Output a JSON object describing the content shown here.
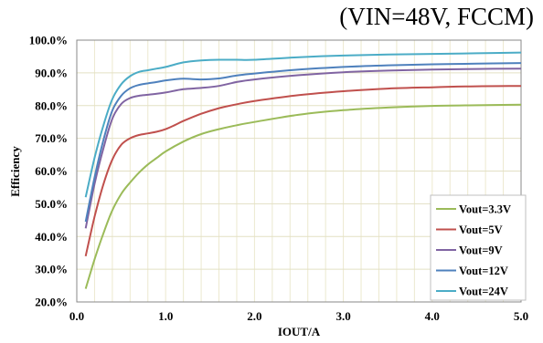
{
  "chart_data": {
    "type": "line",
    "title": "(VIN=48V, FCCM)",
    "xlabel": "IOUT/A",
    "ylabel": "Efficiency",
    "xlim": [
      0,
      5
    ],
    "ylim": [
      20,
      100
    ],
    "x_ticks": [
      "0.0",
      "1.0",
      "2.0",
      "3.0",
      "4.0",
      "5.0"
    ],
    "y_ticks": [
      "20.0%",
      "30.0%",
      "40.0%",
      "50.0%",
      "60.0%",
      "70.0%",
      "80.0%",
      "90.0%",
      "100.0%"
    ],
    "grid": true,
    "legend_position": "bottom-right",
    "series": [
      {
        "name": "Vout=3.3V",
        "color": "#9bbb59",
        "points": [
          [
            0.1,
            24
          ],
          [
            0.2,
            33
          ],
          [
            0.3,
            41
          ],
          [
            0.4,
            48
          ],
          [
            0.5,
            53
          ],
          [
            0.6,
            56.5
          ],
          [
            0.7,
            59.5
          ],
          [
            0.8,
            62
          ],
          [
            0.9,
            64
          ],
          [
            1.0,
            66
          ],
          [
            1.2,
            69
          ],
          [
            1.4,
            71.3
          ],
          [
            1.6,
            72.8
          ],
          [
            1.8,
            74
          ],
          [
            2.0,
            75
          ],
          [
            2.5,
            77.2
          ],
          [
            3.0,
            78.6
          ],
          [
            3.5,
            79.4
          ],
          [
            4.0,
            79.9
          ],
          [
            4.5,
            80.1
          ],
          [
            5.0,
            80.3
          ]
        ]
      },
      {
        "name": "Vout=5V",
        "color": "#c0504d",
        "points": [
          [
            0.1,
            34
          ],
          [
            0.2,
            46
          ],
          [
            0.3,
            56
          ],
          [
            0.4,
            63.5
          ],
          [
            0.5,
            68
          ],
          [
            0.6,
            70
          ],
          [
            0.7,
            71
          ],
          [
            0.8,
            71.5
          ],
          [
            0.9,
            72
          ],
          [
            1.0,
            72.8
          ],
          [
            1.1,
            74
          ],
          [
            1.2,
            75.3
          ],
          [
            1.4,
            77.5
          ],
          [
            1.6,
            79.2
          ],
          [
            1.8,
            80.4
          ],
          [
            2.0,
            81.4
          ],
          [
            2.5,
            83.2
          ],
          [
            3.0,
            84.4
          ],
          [
            3.5,
            85.2
          ],
          [
            4.0,
            85.6
          ],
          [
            4.5,
            85.9
          ],
          [
            5.0,
            86
          ]
        ]
      },
      {
        "name": "Vout=9V",
        "color": "#8064a2",
        "points": [
          [
            0.1,
            42.5
          ],
          [
            0.2,
            56
          ],
          [
            0.3,
            67
          ],
          [
            0.4,
            76
          ],
          [
            0.5,
            80.5
          ],
          [
            0.6,
            82.3
          ],
          [
            0.7,
            83
          ],
          [
            0.8,
            83.3
          ],
          [
            0.9,
            83.6
          ],
          [
            1.0,
            84
          ],
          [
            1.2,
            85
          ],
          [
            1.4,
            85.4
          ],
          [
            1.6,
            86
          ],
          [
            1.8,
            87.2
          ],
          [
            2.0,
            88
          ],
          [
            2.5,
            89.3
          ],
          [
            3.0,
            90.2
          ],
          [
            3.5,
            90.7
          ],
          [
            4.0,
            91
          ],
          [
            4.5,
            91.2
          ],
          [
            5.0,
            91.3
          ]
        ]
      },
      {
        "name": "Vout=12V",
        "color": "#4f81bd",
        "points": [
          [
            0.1,
            44.5
          ],
          [
            0.2,
            58
          ],
          [
            0.3,
            69.5
          ],
          [
            0.4,
            78.5
          ],
          [
            0.5,
            83
          ],
          [
            0.6,
            85.3
          ],
          [
            0.7,
            86.3
          ],
          [
            0.8,
            86.8
          ],
          [
            0.9,
            87.2
          ],
          [
            1.0,
            87.7
          ],
          [
            1.2,
            88.2
          ],
          [
            1.4,
            88
          ],
          [
            1.6,
            88.3
          ],
          [
            1.8,
            89.2
          ],
          [
            2.0,
            89.8
          ],
          [
            2.5,
            91
          ],
          [
            3.0,
            91.8
          ],
          [
            3.5,
            92.3
          ],
          [
            4.0,
            92.6
          ],
          [
            4.5,
            92.8
          ],
          [
            5.0,
            93
          ]
        ]
      },
      {
        "name": "Vout=24V",
        "color": "#4bacc6",
        "points": [
          [
            0.1,
            52
          ],
          [
            0.2,
            64
          ],
          [
            0.3,
            74
          ],
          [
            0.4,
            82
          ],
          [
            0.5,
            86.5
          ],
          [
            0.6,
            89
          ],
          [
            0.7,
            90.3
          ],
          [
            0.8,
            90.8
          ],
          [
            0.9,
            91.3
          ],
          [
            1.0,
            91.8
          ],
          [
            1.2,
            93.2
          ],
          [
            1.4,
            93.8
          ],
          [
            1.6,
            94
          ],
          [
            1.8,
            94
          ],
          [
            2.0,
            94
          ],
          [
            2.5,
            94.8
          ],
          [
            3.0,
            95.3
          ],
          [
            3.5,
            95.6
          ],
          [
            4.0,
            95.8
          ],
          [
            4.5,
            96
          ],
          [
            5.0,
            96.2
          ]
        ]
      }
    ]
  }
}
